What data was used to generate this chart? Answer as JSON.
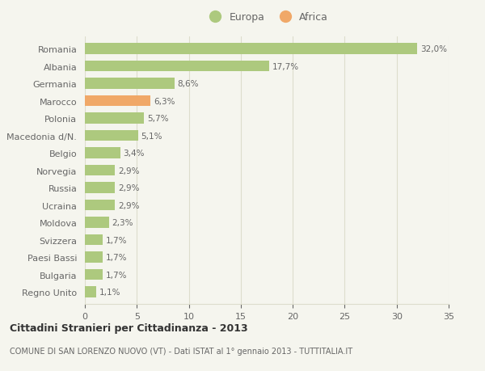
{
  "categories": [
    "Romania",
    "Albania",
    "Germania",
    "Marocco",
    "Polonia",
    "Macedonia d/N.",
    "Belgio",
    "Norvegia",
    "Russia",
    "Ucraina",
    "Moldova",
    "Svizzera",
    "Paesi Bassi",
    "Bulgaria",
    "Regno Unito"
  ],
  "values": [
    32.0,
    17.7,
    8.6,
    6.3,
    5.7,
    5.1,
    3.4,
    2.9,
    2.9,
    2.9,
    2.3,
    1.7,
    1.7,
    1.7,
    1.1
  ],
  "labels": [
    "32,0%",
    "17,7%",
    "8,6%",
    "6,3%",
    "5,7%",
    "5,1%",
    "3,4%",
    "2,9%",
    "2,9%",
    "2,9%",
    "2,3%",
    "1,7%",
    "1,7%",
    "1,7%",
    "1,1%"
  ],
  "continent": [
    "Europa",
    "Europa",
    "Europa",
    "Africa",
    "Europa",
    "Europa",
    "Europa",
    "Europa",
    "Europa",
    "Europa",
    "Europa",
    "Europa",
    "Europa",
    "Europa",
    "Europa"
  ],
  "color_europa": "#adc97e",
  "color_africa": "#f0a868",
  "background_color": "#f5f5ee",
  "grid_color": "#ddddcc",
  "text_color": "#666666",
  "title": "Cittadini Stranieri per Cittadinanza - 2013",
  "subtitle": "COMUNE DI SAN LORENZO NUOVO (VT) - Dati ISTAT al 1° gennaio 2013 - TUTTITALIA.IT",
  "xlim": [
    0,
    35
  ],
  "xticks": [
    0,
    5,
    10,
    15,
    20,
    25,
    30,
    35
  ],
  "legend_europa": "Europa",
  "legend_africa": "Africa"
}
